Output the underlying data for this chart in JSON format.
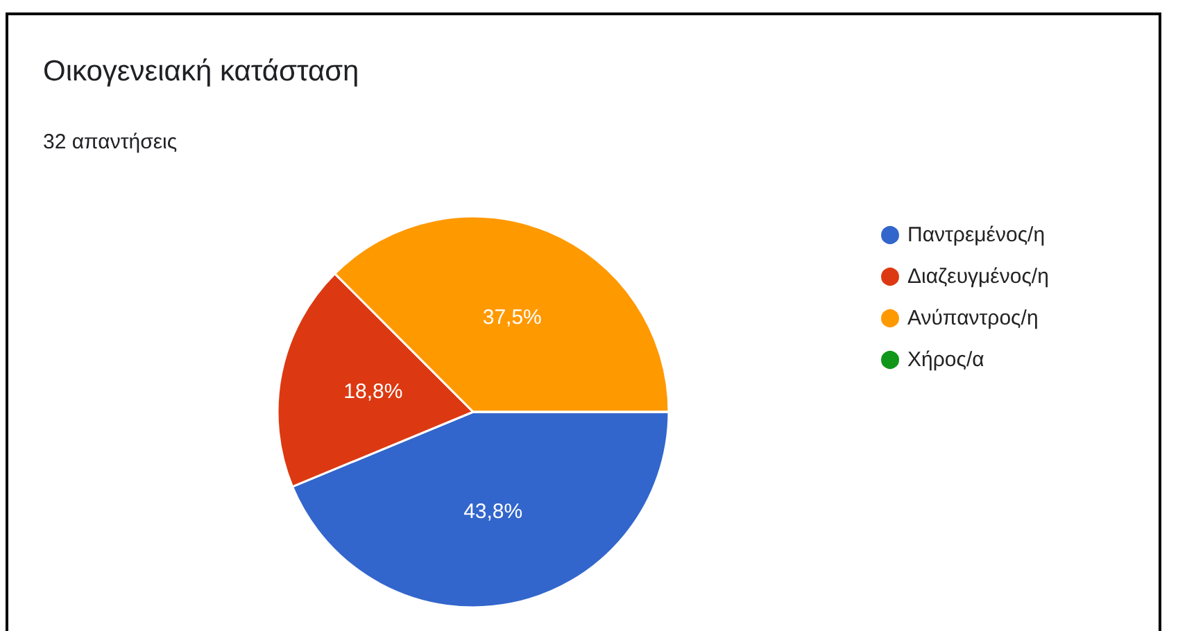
{
  "chart_data": {
    "type": "pie",
    "title": "Οικογενειακή κατάσταση",
    "subtitle": "32 απαντήσεις",
    "categories": [
      "Παντρεμένος/η",
      "Διαζευγμένος/η",
      "Ανύπαντρος/η",
      "Χήρος/α"
    ],
    "values": [
      43.75,
      18.75,
      37.5,
      0
    ],
    "value_labels": [
      "43,8%",
      "18,8%",
      "37,5%",
      null
    ],
    "colors": [
      "#3366cc",
      "#dc3912",
      "#ff9900",
      "#109618"
    ],
    "legend": "right"
  }
}
